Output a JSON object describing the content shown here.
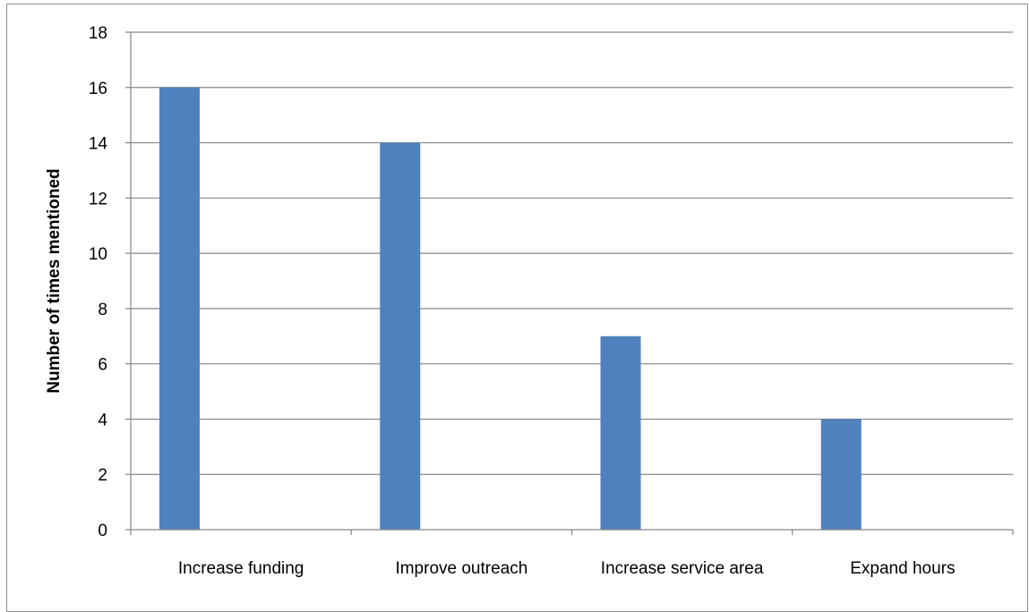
{
  "chart_data": {
    "type": "bar",
    "title": "",
    "xlabel": "",
    "ylabel": "Number of times mentioned",
    "categories": [
      "Increase funding",
      "Improve outreach",
      "Increase service area",
      "Expand hours"
    ],
    "values": [
      16,
      14,
      7,
      4
    ],
    "ylim": [
      0,
      18
    ],
    "y_ticks": [
      0,
      2,
      4,
      6,
      8,
      10,
      12,
      14,
      16,
      18
    ],
    "grid": true,
    "legend": "none",
    "colors": {
      "bar": "#4f81bd",
      "gridline": "#868686",
      "axis": "#868686"
    }
  }
}
